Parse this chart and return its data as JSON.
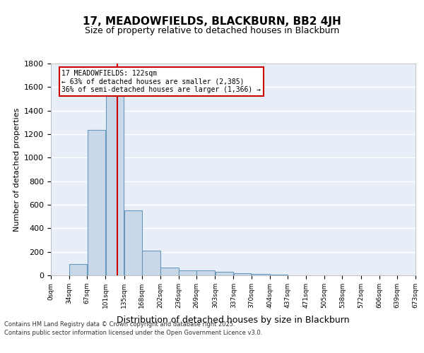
{
  "title": "17, MEADOWFIELDS, BLACKBURN, BB2 4JH",
  "subtitle": "Size of property relative to detached houses in Blackburn",
  "xlabel": "Distribution of detached houses by size in Blackburn",
  "ylabel": "Number of detached properties",
  "bin_edges": [
    0,
    34,
    67,
    101,
    135,
    168,
    202,
    236,
    269,
    303,
    337,
    370,
    404,
    437,
    471,
    505,
    538,
    572,
    606,
    639,
    673
  ],
  "bar_heights": [
    0,
    95,
    1235,
    1530,
    555,
    210,
    65,
    45,
    45,
    30,
    20,
    10,
    5,
    3,
    2,
    2,
    1,
    0,
    0,
    0
  ],
  "bar_color": "#c8d8e8",
  "bar_edge_color": "#6699bb",
  "bar_linewidth": 0.8,
  "red_line_x": 122,
  "red_line_color": "#cc0000",
  "ylim": [
    0,
    1800
  ],
  "yticks": [
    0,
    200,
    400,
    600,
    800,
    1000,
    1200,
    1400,
    1600,
    1800
  ],
  "bg_color": "#e8eef8",
  "grid_color": "#ffffff",
  "annotation_title": "17 MEADOWFIELDS: 122sqm",
  "annotation_line1": "← 63% of detached houses are smaller (2,385)",
  "annotation_line2": "36% of semi-detached houses are larger (1,366) →",
  "annotation_box_color": "#cc0000",
  "annotation_fill": "#ffffff",
  "footnote1": "Contains HM Land Registry data © Crown copyright and database right 2025.",
  "footnote2": "Contains public sector information licensed under the Open Government Licence v3.0.",
  "tick_labels": [
    "0sqm",
    "34sqm",
    "67sqm",
    "101sqm",
    "135sqm",
    "168sqm",
    "202sqm",
    "236sqm",
    "269sqm",
    "303sqm",
    "337sqm",
    "370sqm",
    "404sqm",
    "437sqm",
    "471sqm",
    "505sqm",
    "538sqm",
    "572sqm",
    "606sqm",
    "639sqm",
    "673sqm"
  ]
}
